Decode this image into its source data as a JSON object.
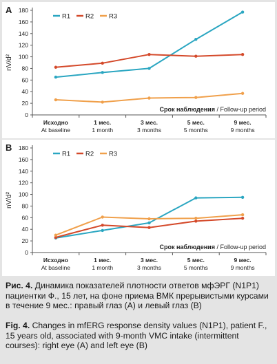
{
  "chart_data": [
    {
      "panel_letter": "A",
      "type": "line",
      "categories": [
        [
          "Исходно",
          "At baseline"
        ],
        [
          "1 мес.",
          "1 month"
        ],
        [
          "3 мес.",
          "3 months"
        ],
        [
          "5 мес.",
          "5 months"
        ],
        [
          "9 мес.",
          "9 months"
        ]
      ],
      "series": [
        {
          "name": "R1",
          "color": "#2aa6c1",
          "values": [
            65,
            73,
            80,
            130,
            177
          ]
        },
        {
          "name": "R2",
          "color": "#d4492a",
          "values": [
            82,
            89,
            104,
            101,
            104
          ]
        },
        {
          "name": "R3",
          "color": "#f0a04b",
          "values": [
            26,
            22,
            29,
            30,
            37
          ]
        }
      ],
      "ylabel": "nV/d²",
      "xlabel_ru": "Срок наблюдения",
      "xlabel_en": " / Follow-up period",
      "ylim": [
        0,
        180
      ],
      "yticks": [
        0,
        20,
        40,
        60,
        80,
        100,
        120,
        140,
        160,
        180
      ],
      "grid": false,
      "legend_position": "top-left"
    },
    {
      "panel_letter": "B",
      "type": "line",
      "categories": [
        [
          "Исходно",
          "At baseline"
        ],
        [
          "1 мес.",
          "1 month"
        ],
        [
          "3 мес.",
          "3 months"
        ],
        [
          "5 мес.",
          "5 months"
        ],
        [
          "9 мес.",
          "9 months"
        ]
      ],
      "series": [
        {
          "name": "R1",
          "color": "#2aa6c1",
          "values": [
            25,
            38,
            51,
            94,
            95
          ]
        },
        {
          "name": "R2",
          "color": "#d4492a",
          "values": [
            26,
            47,
            43,
            54,
            59
          ]
        },
        {
          "name": "R3",
          "color": "#f0a04b",
          "values": [
            30,
            61,
            58,
            59,
            65
          ]
        }
      ],
      "ylabel": "nV/d²",
      "xlabel_ru": "Срок наблюдения",
      "xlabel_en": " / Follow-up period",
      "ylim": [
        0,
        180
      ],
      "yticks": [
        0,
        20,
        40,
        60,
        80,
        100,
        120,
        140,
        160,
        180
      ],
      "grid": false,
      "legend_position": "top-left"
    }
  ],
  "caption_ru": {
    "label": "Рис. 4.",
    "text": " Динамика показателей плотности ответов мфЭРГ (N1P1) пациентки Ф., 15 лет, на фоне приема ВМК прерывистыми курсами в течение 9 мес.: правый глаз (А) и левый глаз (В)"
  },
  "caption_en": {
    "label": "Fig. 4.",
    "text": " Changes in mfERG response density values (N1P1), patient F., 15 years old, associated with 9-month VMC intake (intermittent courses): right eye (A) and left eye (B)"
  }
}
